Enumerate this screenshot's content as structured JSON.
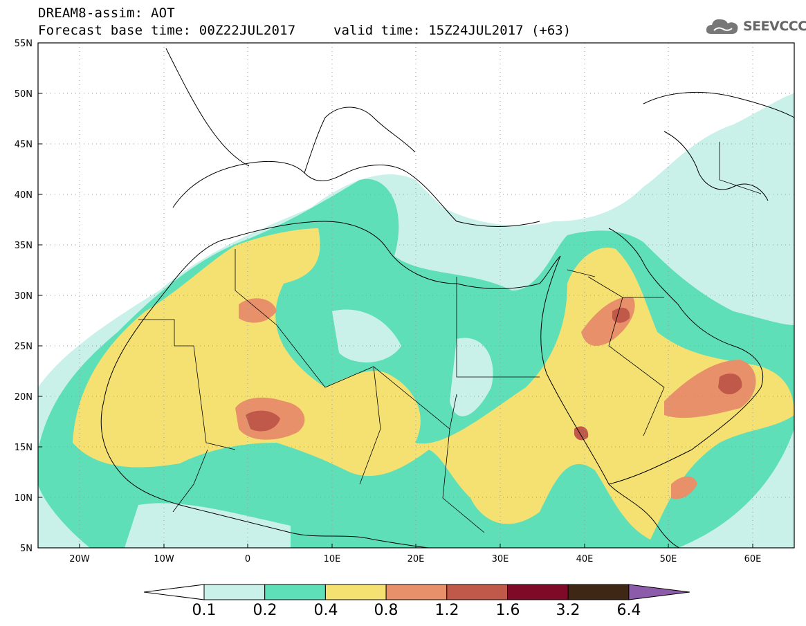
{
  "title": {
    "line1": "DREAM8-assim: AOT",
    "line2": "Forecast base time: 00Z22JUL2017",
    "valid": "valid time: 15Z24JUL2017 (+63)"
  },
  "logo": {
    "text": "SEEVCCC",
    "icon": "cloud-icon"
  },
  "map": {
    "variable": "AOT",
    "lon_range": [
      -25,
      65
    ],
    "lat_range": [
      5,
      55
    ],
    "lat_labels": [
      "55N",
      "50N",
      "45N",
      "40N",
      "35N",
      "30N",
      "25N",
      "20N",
      "15N",
      "10N",
      "5N"
    ],
    "lon_labels": [
      "20W",
      "10W",
      "0",
      "10E",
      "20E",
      "30E",
      "40E",
      "50E",
      "60E"
    ],
    "gridlines": "dotted"
  },
  "colorbar": {
    "levels": [
      "0.1",
      "0.2",
      "0.4",
      "0.8",
      "1.2",
      "1.6",
      "3.2",
      "6.4"
    ],
    "colors": [
      "#ffffff",
      "#c9f1ea",
      "#5fdfb8",
      "#f5e172",
      "#e8906a",
      "#c0594a",
      "#7e0a28",
      "#3f2716",
      "#8c5cab"
    ]
  }
}
